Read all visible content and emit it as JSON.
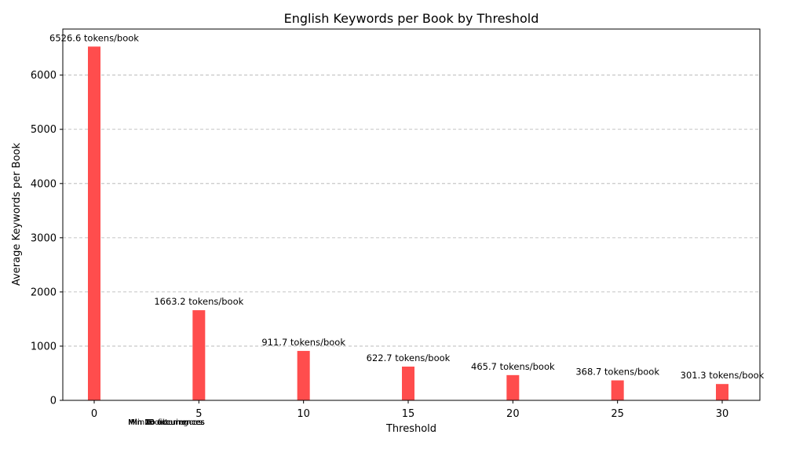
{
  "chart_data": {
    "type": "bar",
    "title": "English Keywords per Book by Threshold",
    "xlabel": "Threshold",
    "ylabel": "Average Keywords per Book",
    "x": [
      0,
      5,
      10,
      15,
      20,
      25,
      30
    ],
    "values": [
      6526.6,
      1663.2,
      911.7,
      622.7,
      465.7,
      368.7,
      301.3
    ],
    "data_labels": [
      "6526.6 tokens/book",
      "1663.2 tokens/book",
      "911.7 tokens/book",
      "622.7 tokens/book",
      "465.7 tokens/book",
      "368.7 tokens/book",
      "301.3 tokens/book"
    ],
    "category_labels": [
      "No filtering",
      "Min 5 occurrences",
      "Min 10 occurrences",
      "Min 15 occurrences",
      "Min 20 occurrences",
      "Min 25 occurrences",
      "Min 30 occurrences"
    ],
    "x_ticks": [
      "0",
      "5",
      "10",
      "15",
      "20",
      "25",
      "30"
    ],
    "y_ticks": [
      "0",
      "1000",
      "2000",
      "3000",
      "4000",
      "5000",
      "6000"
    ],
    "xlim": [
      -1.5,
      31.8
    ],
    "ylim": [
      0,
      6850
    ],
    "bar_color": "#ff4d4d",
    "grid": "horizontal dashed"
  }
}
